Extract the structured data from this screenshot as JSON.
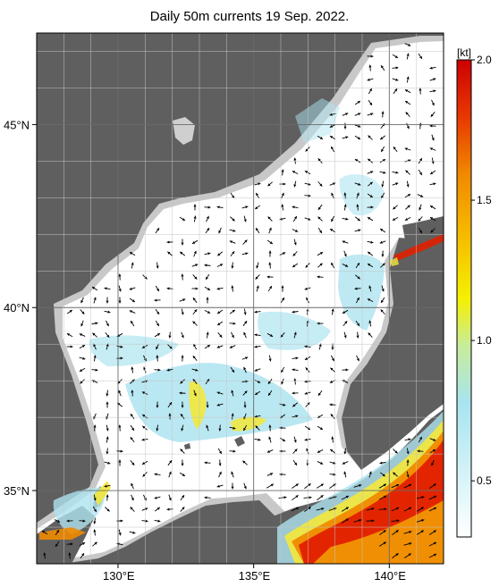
{
  "title": "Daily 50m currents 19 Sep. 2022.",
  "map": {
    "lat_labels": [
      {
        "lat": 45,
        "text": "45°N"
      },
      {
        "lat": 40,
        "text": "40°N"
      },
      {
        "lat": 35,
        "text": "35°N"
      }
    ],
    "lon_labels": [
      {
        "lon": 130,
        "text": "130°E"
      },
      {
        "lon": 135,
        "text": "135°E"
      },
      {
        "lon": 140,
        "text": "140°E"
      }
    ],
    "extent": {
      "lon_min": 127,
      "lon_max": 142,
      "lat_min": 33,
      "lat_max": 47.5
    },
    "colors": {
      "land": "#5f5f5f",
      "shelf": "#c8c8c8",
      "sea": "#ffffff",
      "grid": "#9a9a9a"
    }
  },
  "colorbar": {
    "unit": "[kt]",
    "ticks": [
      "2.0",
      "1.5",
      "1.0",
      "0.5"
    ],
    "tick_values": [
      2.0,
      1.5,
      1.0,
      0.5
    ],
    "range": [
      0.3,
      2.0
    ],
    "stops": [
      "#ffffff",
      "#a8e4f0",
      "#f5f000",
      "#f08a00",
      "#e02000",
      "#cc0000"
    ]
  }
}
